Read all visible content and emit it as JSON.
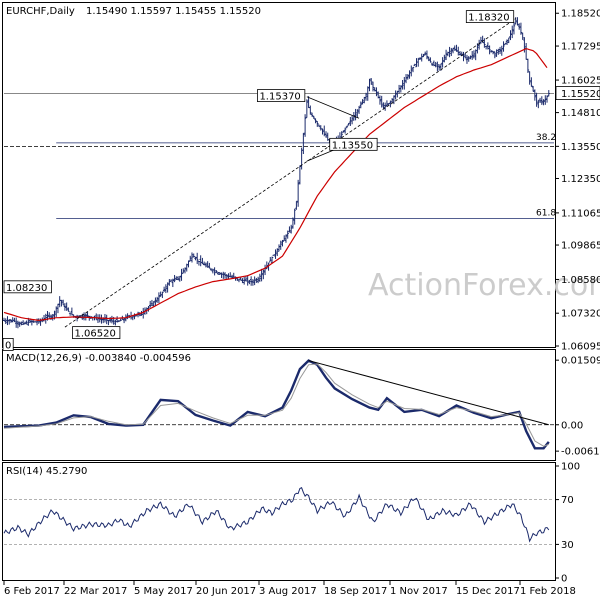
{
  "header": {
    "symbol": "EURCHF,Daily",
    "ohlc": "1.15490 1.15597 1.15455 1.15520"
  },
  "watermark": "ActionForex.com",
  "colors": {
    "candle": "#1b2a6b",
    "sma": "#cc0000",
    "macd_line": "#1b2a6b",
    "signal_line": "#999999",
    "rsi_line": "#1b2a6b",
    "grid": "#000000",
    "price_tag_bg": "#ffffff"
  },
  "chart_data": [
    {
      "type": "candlestick",
      "panel": "price",
      "title": "EURCHF,Daily 1.15490 1.15597 1.15455 1.15520",
      "ylim": [
        1.06095,
        1.18865
      ],
      "y_ticks": [
        "1.18520",
        "1.17295",
        "1.16025",
        "1.14810",
        "1.13550",
        "1.12350",
        "1.11065",
        "1.09865",
        "1.08580",
        "1.07320",
        "1.06095"
      ],
      "current_price": "1.15520",
      "x_ticks": [
        "6 Feb 2017",
        "22 Mar 2017",
        "5 May 2017",
        "20 Jun 2017",
        "3 Aug 2017",
        "18 Sep 2017",
        "1 Nov 2017",
        "15 Dec 2017",
        "1 Feb 2018"
      ],
      "close_path": [
        [
          0,
          1.0705
        ],
        [
          5,
          1.0705
        ],
        [
          10,
          1.069
        ],
        [
          15,
          1.07
        ],
        [
          20,
          1.07
        ],
        [
          25,
          1.072
        ],
        [
          28,
          1.0722
        ],
        [
          32,
          1.078
        ],
        [
          36,
          1.0745
        ],
        [
          40,
          1.072
        ],
        [
          48,
          1.0722
        ],
        [
          55,
          1.071
        ],
        [
          60,
          1.0705
        ],
        [
          65,
          1.07
        ],
        [
          72,
          1.072
        ],
        [
          78,
          1.0728
        ],
        [
          84,
          1.076
        ],
        [
          90,
          1.08
        ],
        [
          95,
          1.085
        ],
        [
          100,
          1.086
        ],
        [
          104,
          1.09
        ],
        [
          108,
          1.095
        ],
        [
          112,
          1.0925
        ],
        [
          118,
          1.09
        ],
        [
          124,
          1.088
        ],
        [
          130,
          1.0868
        ],
        [
          136,
          1.0855
        ],
        [
          142,
          1.085
        ],
        [
          146,
          1.086
        ],
        [
          150,
          1.09
        ],
        [
          155,
          1.095
        ],
        [
          160,
          1.1
        ],
        [
          165,
          1.105
        ],
        [
          168,
          1.115
        ],
        [
          170,
          1.128
        ],
        [
          172,
          1.14
        ],
        [
          174,
          1.152
        ],
        [
          176,
          1.148
        ],
        [
          178,
          1.146
        ],
        [
          182,
          1.142
        ],
        [
          186,
          1.138
        ],
        [
          188,
          1.136
        ],
        [
          192,
          1.138
        ],
        [
          196,
          1.142
        ],
        [
          200,
          1.146
        ],
        [
          204,
          1.15
        ],
        [
          208,
          1.155
        ],
        [
          210,
          1.16
        ],
        [
          214,
          1.155
        ],
        [
          218,
          1.15
        ],
        [
          222,
          1.152
        ],
        [
          226,
          1.156
        ],
        [
          230,
          1.16
        ],
        [
          234,
          1.164
        ],
        [
          238,
          1.168
        ],
        [
          242,
          1.17
        ],
        [
          246,
          1.166
        ],
        [
          250,
          1.165
        ],
        [
          254,
          1.17
        ],
        [
          258,
          1.172
        ],
        [
          262,
          1.17
        ],
        [
          266,
          1.168
        ],
        [
          270,
          1.17
        ],
        [
          274,
          1.175
        ],
        [
          278,
          1.172
        ],
        [
          282,
          1.17
        ],
        [
          286,
          1.172
        ],
        [
          290,
          1.176
        ],
        [
          294,
          1.182
        ],
        [
          296,
          1.18
        ],
        [
          298,
          1.176
        ],
        [
          300,
          1.168
        ],
        [
          302,
          1.16
        ],
        [
          304,
          1.156
        ],
        [
          306,
          1.152
        ],
        [
          308,
          1.152
        ],
        [
          311,
          1.153
        ],
        [
          313,
          1.1552
        ]
      ],
      "sma_path": [
        [
          0,
          1.0735
        ],
        [
          10,
          1.0715
        ],
        [
          20,
          1.0705
        ],
        [
          30,
          1.0715
        ],
        [
          40,
          1.0718
        ],
        [
          50,
          1.0716
        ],
        [
          60,
          1.0712
        ],
        [
          70,
          1.0715
        ],
        [
          80,
          1.0735
        ],
        [
          90,
          1.077
        ],
        [
          100,
          1.0805
        ],
        [
          110,
          1.083
        ],
        [
          120,
          1.085
        ],
        [
          130,
          1.086
        ],
        [
          140,
          1.0872
        ],
        [
          150,
          1.09
        ],
        [
          160,
          1.0945
        ],
        [
          170,
          1.105
        ],
        [
          180,
          1.117
        ],
        [
          190,
          1.126
        ],
        [
          200,
          1.133
        ],
        [
          210,
          1.14
        ],
        [
          220,
          1.145
        ],
        [
          230,
          1.15
        ],
        [
          240,
          1.154
        ],
        [
          250,
          1.158
        ],
        [
          260,
          1.1615
        ],
        [
          270,
          1.164
        ],
        [
          280,
          1.166
        ],
        [
          290,
          1.169
        ],
        [
          300,
          1.172
        ],
        [
          305,
          1.171
        ],
        [
          313,
          1.164
        ]
      ],
      "annotations": [
        {
          "text": "1.18320",
          "bar": 294,
          "price": 1.1832
        },
        {
          "text": "1.15370",
          "bar": 174,
          "price": 1.1537
        },
        {
          "text": "1.13550",
          "bar": 186,
          "price": 1.1355
        },
        {
          "text": "1.08230",
          "bar": 33,
          "price": 1.0823
        },
        {
          "text": "1.06520",
          "bar": 62,
          "price": 1.0652
        },
        {
          "text": "0",
          "bar": 0,
          "price": 1.0608
        }
      ],
      "fib_levels": [
        {
          "label": "38.2",
          "price": 1.1368
        },
        {
          "label": "61.8",
          "price": 1.1085
        }
      ],
      "horizontal_levels": [
        1.1355,
        1.1552
      ]
    },
    {
      "type": "line",
      "panel": "macd",
      "title": "MACD(12,26,9) -0.003840 -0.004596",
      "ylim": [
        -0.008,
        0.017
      ],
      "y_ticks": [
        "0.015092",
        "0.00",
        "-0.006163"
      ],
      "series": [
        {
          "name": "MACD",
          "values": [
            [
              0,
              -0.0005
            ],
            [
              20,
              -0.0002
            ],
            [
              30,
              0.0005
            ],
            [
              40,
              0.0022
            ],
            [
              50,
              0.0018
            ],
            [
              60,
              0.0002
            ],
            [
              70,
              -0.0002
            ],
            [
              80,
              0.0
            ],
            [
              90,
              0.0058
            ],
            [
              100,
              0.0055
            ],
            [
              110,
              0.0023
            ],
            [
              120,
              0.001
            ],
            [
              130,
              -0.0002
            ],
            [
              140,
              0.003
            ],
            [
              150,
              0.002
            ],
            [
              160,
              0.004
            ],
            [
              165,
              0.008
            ],
            [
              170,
              0.013
            ],
            [
              175,
              0.015
            ],
            [
              180,
              0.014
            ],
            [
              185,
              0.011
            ],
            [
              190,
              0.0085
            ],
            [
              200,
              0.006
            ],
            [
              210,
              0.004
            ],
            [
              215,
              0.0035
            ],
            [
              220,
              0.0062
            ],
            [
              230,
              0.003
            ],
            [
              240,
              0.0035
            ],
            [
              250,
              0.002
            ],
            [
              260,
              0.0045
            ],
            [
              270,
              0.0028
            ],
            [
              280,
              0.0015
            ],
            [
              290,
              0.0025
            ],
            [
              296,
              0.003
            ],
            [
              300,
              -0.0015
            ],
            [
              305,
              -0.0055
            ],
            [
              310,
              -0.0055
            ],
            [
              313,
              -0.004
            ]
          ]
        },
        {
          "name": "Signal",
          "values": [
            [
              0,
              -0.0008
            ],
            [
              20,
              -0.0003
            ],
            [
              30,
              0.0002
            ],
            [
              40,
              0.0016
            ],
            [
              50,
              0.0019
            ],
            [
              60,
              0.0008
            ],
            [
              70,
              0.0
            ],
            [
              80,
              0.0001
            ],
            [
              90,
              0.0045
            ],
            [
              100,
              0.005
            ],
            [
              110,
              0.0032
            ],
            [
              120,
              0.0016
            ],
            [
              130,
              0.0003
            ],
            [
              140,
              0.0022
            ],
            [
              150,
              0.0022
            ],
            [
              160,
              0.0034
            ],
            [
              165,
              0.0062
            ],
            [
              170,
              0.0108
            ],
            [
              175,
              0.014
            ],
            [
              180,
              0.0142
            ],
            [
              185,
              0.0122
            ],
            [
              190,
              0.0097
            ],
            [
              200,
              0.007
            ],
            [
              210,
              0.0048
            ],
            [
              215,
              0.004
            ],
            [
              220,
              0.0055
            ],
            [
              230,
              0.0038
            ],
            [
              240,
              0.0036
            ],
            [
              250,
              0.0024
            ],
            [
              260,
              0.004
            ],
            [
              270,
              0.0031
            ],
            [
              280,
              0.0019
            ],
            [
              290,
              0.0024
            ],
            [
              296,
              0.0028
            ],
            [
              300,
              0.0002
            ],
            [
              305,
              -0.0038
            ],
            [
              310,
              -0.005
            ],
            [
              313,
              -0.0046
            ]
          ]
        }
      ],
      "trendline": [
        [
          175,
          0.015
        ],
        [
          313,
          0.0
        ]
      ]
    },
    {
      "type": "line",
      "panel": "rsi",
      "title": "RSI(14) 45.2790",
      "ylim": [
        0,
        100
      ],
      "y_ticks": [
        "100",
        "70",
        "30",
        "0"
      ],
      "series": [
        {
          "name": "RSI",
          "values": [
            [
              0,
              40
            ],
            [
              8,
              45
            ],
            [
              14,
              39
            ],
            [
              22,
              52
            ],
            [
              28,
              60
            ],
            [
              34,
              52
            ],
            [
              40,
              44
            ],
            [
              50,
              48
            ],
            [
              60,
              47
            ],
            [
              66,
              52
            ],
            [
              72,
              46
            ],
            [
              82,
              60
            ],
            [
              90,
              66
            ],
            [
              98,
              55
            ],
            [
              106,
              66
            ],
            [
              114,
              50
            ],
            [
              122,
              60
            ],
            [
              130,
              44
            ],
            [
              140,
              50
            ],
            [
              148,
              62
            ],
            [
              154,
              58
            ],
            [
              160,
              66
            ],
            [
              166,
              70
            ],
            [
              170,
              80
            ],
            [
              175,
              72
            ],
            [
              180,
              60
            ],
            [
              188,
              68
            ],
            [
              196,
              55
            ],
            [
              204,
              72
            ],
            [
              212,
              50
            ],
            [
              220,
              66
            ],
            [
              228,
              58
            ],
            [
              236,
              72
            ],
            [
              244,
              52
            ],
            [
              252,
              60
            ],
            [
              260,
              56
            ],
            [
              268,
              66
            ],
            [
              276,
              50
            ],
            [
              284,
              58
            ],
            [
              292,
              66
            ],
            [
              297,
              55
            ],
            [
              302,
              35
            ],
            [
              306,
              40
            ],
            [
              310,
              42
            ],
            [
              313,
              45
            ]
          ]
        }
      ]
    }
  ]
}
